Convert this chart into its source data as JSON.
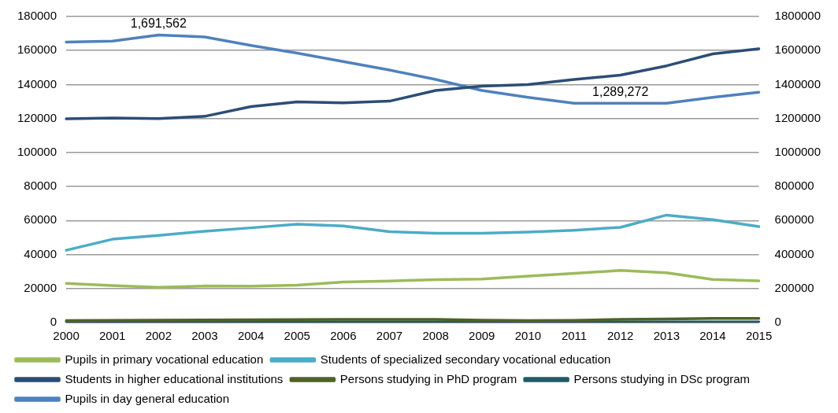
{
  "chart_data": {
    "type": "line",
    "categories": [
      "2000",
      "2001",
      "2002",
      "2003",
      "2004",
      "2005",
      "2006",
      "2007",
      "2008",
      "2009",
      "2010",
      "2011",
      "2012",
      "2013",
      "2014",
      "2015"
    ],
    "series": [
      {
        "name": "Pupils in primary vocational education",
        "color": "#9bbb59",
        "values": [
          23000,
          21700,
          20700,
          21500,
          21400,
          22000,
          23800,
          24400,
          25200,
          25600,
          27300,
          28900,
          30600,
          29300,
          25300,
          24500
        ]
      },
      {
        "name": "Students of specialized secondary vocational education",
        "color": "#4bacc6",
        "values": [
          42500,
          49000,
          51300,
          53700,
          55700,
          57800,
          56800,
          53400,
          52500,
          52500,
          53200,
          54300,
          56000,
          63200,
          60500,
          56500
        ]
      },
      {
        "name": "Students in higher educational institutions",
        "color": "#2c4d75",
        "values": [
          119800,
          120300,
          120000,
          121300,
          127000,
          129800,
          129200,
          130200,
          136500,
          139000,
          140000,
          143000,
          145500,
          151000,
          158000,
          161000
        ]
      },
      {
        "name": "Persons studying in PhD program",
        "color": "#4f6228",
        "values": [
          1200,
          1300,
          1400,
          1500,
          1600,
          1700,
          1900,
          1900,
          1800,
          1400,
          1100,
          1300,
          1800,
          2100,
          2400,
          2400
        ]
      },
      {
        "name": "Persons studying in DSc program",
        "color": "#215967",
        "values": [
          300,
          300,
          300,
          300,
          300,
          300,
          300,
          300,
          300,
          300,
          300,
          300,
          300,
          400,
          400,
          400
        ]
      },
      {
        "name": "Pupils in day general education",
        "color": "#4f81bd",
        "axis": "y2",
        "values": [
          1650000,
          1655000,
          1691562,
          1680000,
          1630000,
          1585000,
          1535000,
          1485000,
          1430000,
          1365000,
          1325000,
          1290000,
          1289272,
          1290000,
          1325000,
          1355000
        ],
        "value_labels": [
          null,
          null,
          "1,691,562",
          null,
          null,
          null,
          null,
          null,
          null,
          null,
          null,
          null,
          "1,289,272",
          null,
          null,
          null
        ]
      }
    ],
    "ylim": [
      0,
      180000
    ],
    "yticks": [
      0,
      20000,
      40000,
      60000,
      80000,
      100000,
      120000,
      140000,
      160000,
      180000
    ],
    "y2lim": [
      0,
      1800000
    ],
    "y2ticks": [
      0,
      200000,
      400000,
      600000,
      800000,
      1000000,
      1200000,
      1400000,
      1600000,
      1800000
    ],
    "grid": "y",
    "legend": "bottom",
    "marker": "none",
    "line_style": "solid"
  }
}
